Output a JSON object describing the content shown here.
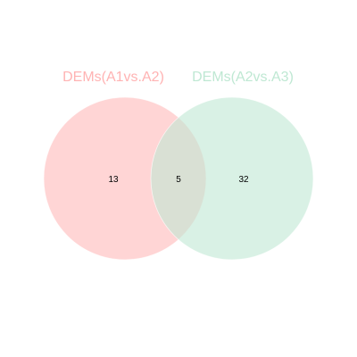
{
  "venn": {
    "sets": [
      {
        "label": "DEMs(A1vs.A2)",
        "color": "#FFB3B3"
      },
      {
        "label": "DEMs(A2vs.A3)",
        "color": "#BFE8D3"
      }
    ],
    "counts": {
      "left_only": "13",
      "overlap": "5",
      "right_only": "32"
    }
  },
  "colors": {
    "background": "#FFFFFF",
    "left_fill": "#FFD4D4",
    "right_fill": "#D6F0E4",
    "left_label": "#FFB3B3",
    "right_label": "#BFE8D3"
  }
}
